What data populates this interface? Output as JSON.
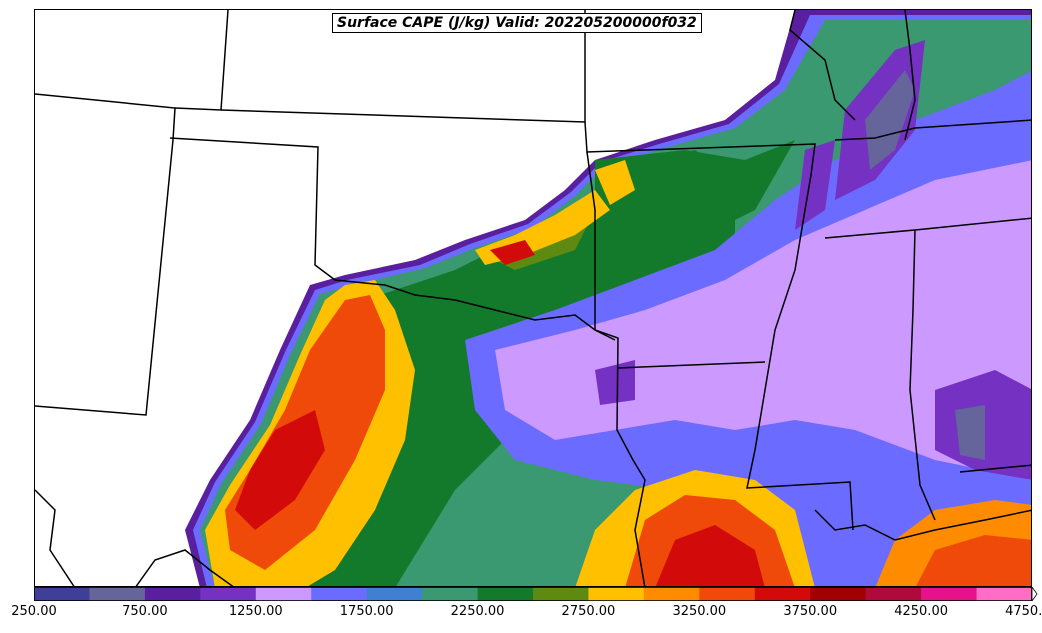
{
  "title": "Surface CAPE (J/kg) Valid: 202205200000f032",
  "colorbar": {
    "colors": [
      "#3f3f99",
      "#65659c",
      "#5a1f9e",
      "#7431c2",
      "#cc99ff",
      "#6b6bff",
      "#3f80d0",
      "#3a9970",
      "#127a2a",
      "#5f8a12",
      "#ffc000",
      "#ff8c00",
      "#f04a0a",
      "#d20a0a",
      "#a00000",
      "#b00a3c",
      "#e6128a",
      "#ff6ec4"
    ],
    "tick_labels": [
      "250.00",
      "750.00",
      "1250.00",
      "1750.00",
      "2250.00",
      "2750.00",
      "3250.00",
      "3750.00",
      "4250.00",
      "4750.00"
    ],
    "extend": "max"
  }
}
